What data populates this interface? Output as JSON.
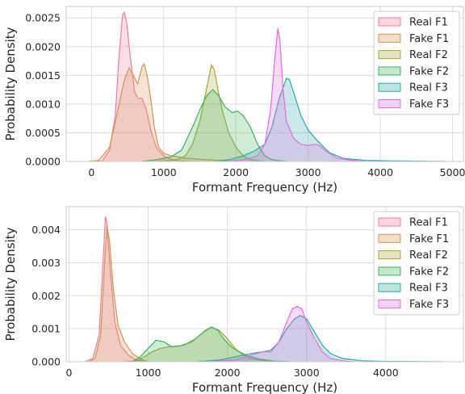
{
  "chart_data": [
    {
      "type": "area",
      "subtype": "kde",
      "xlabel": "Formant Frequency (Hz)",
      "ylabel": "Probability Density",
      "xlim": [
        -350,
        5150
      ],
      "ylim": [
        0,
        0.0027
      ],
      "xticks": [
        "0",
        "1000",
        "2000",
        "3000",
        "4000",
        "5000"
      ],
      "xtick_values": [
        0,
        1000,
        2000,
        3000,
        4000,
        5000
      ],
      "yticks": [
        "0.0000",
        "0.0005",
        "0.0010",
        "0.0015",
        "0.0020",
        "0.0025"
      ],
      "ytick_values": [
        0,
        0.0005,
        0.001,
        0.0015,
        0.002,
        0.0025
      ],
      "grid": true,
      "legend_position": "top-right",
      "series": [
        {
          "name": "Real F1",
          "color": "#f37b9a",
          "points": [
            [
              0,
              0
            ],
            [
              150,
              1e-05
            ],
            [
              250,
              0.0002
            ],
            [
              330,
              0.0008
            ],
            [
              380,
              0.0018
            ],
            [
              430,
              0.00255
            ],
            [
              455,
              0.0026
            ],
            [
              490,
              0.0024
            ],
            [
              540,
              0.0018
            ],
            [
              600,
              0.0012
            ],
            [
              650,
              0.0011
            ],
            [
              700,
              0.0011
            ],
            [
              760,
              0.0009
            ],
            [
              830,
              0.0005
            ],
            [
              900,
              0.00024
            ],
            [
              1000,
              0.0001
            ],
            [
              1100,
              4e-05
            ],
            [
              1200,
              1e-05
            ],
            [
              1400,
              0
            ]
          ]
        },
        {
          "name": "Fake F1",
          "color": "#d2954f",
          "points": [
            [
              -50,
              0
            ],
            [
              100,
              2e-05
            ],
            [
              250,
              0.00025
            ],
            [
              350,
              0.0008
            ],
            [
              450,
              0.0014
            ],
            [
              520,
              0.00163
            ],
            [
              580,
              0.0015
            ],
            [
              640,
              0.00135
            ],
            [
              700,
              0.00165
            ],
            [
              730,
              0.0017
            ],
            [
              770,
              0.0015
            ],
            [
              820,
              0.0011
            ],
            [
              870,
              0.0006
            ],
            [
              930,
              0.00025
            ],
            [
              1000,
              0.00014
            ],
            [
              1100,
              0.0001
            ],
            [
              1300,
              6e-05
            ],
            [
              1600,
              3e-05
            ],
            [
              2000,
              0
            ]
          ]
        },
        {
          "name": "Real F2",
          "color": "#a8a634",
          "points": [
            [
              900,
              0
            ],
            [
              1100,
              2e-05
            ],
            [
              1200,
              4e-05
            ],
            [
              1300,
              0.0001
            ],
            [
              1400,
              0.0003
            ],
            [
              1500,
              0.0007
            ],
            [
              1600,
              0.0013
            ],
            [
              1660,
              0.00168
            ],
            [
              1700,
              0.0016
            ],
            [
              1760,
              0.0012
            ],
            [
              1820,
              0.00085
            ],
            [
              1900,
              0.0005
            ],
            [
              2000,
              0.00025
            ],
            [
              2100,
              0.0001
            ],
            [
              2200,
              3e-05
            ],
            [
              2400,
              0
            ]
          ]
        },
        {
          "name": "Fake F2",
          "color": "#3bb45a",
          "points": [
            [
              700,
              0
            ],
            [
              900,
              3e-05
            ],
            [
              1100,
              8e-05
            ],
            [
              1250,
              0.0002
            ],
            [
              1400,
              0.0006
            ],
            [
              1500,
              0.0009
            ],
            [
              1600,
              0.00115
            ],
            [
              1680,
              0.00125
            ],
            [
              1760,
              0.00115
            ],
            [
              1850,
              0.00095
            ],
            [
              1950,
              0.00085
            ],
            [
              2020,
              0.00088
            ],
            [
              2100,
              0.0008
            ],
            [
              2200,
              0.0006
            ],
            [
              2300,
              0.0003
            ],
            [
              2400,
              0.0001
            ],
            [
              2500,
              3e-05
            ],
            [
              2700,
              0
            ]
          ]
        },
        {
          "name": "Real F3",
          "color": "#26aba3",
          "points": [
            [
              1700,
              0
            ],
            [
              1900,
              3e-05
            ],
            [
              2100,
              0.0001
            ],
            [
              2250,
              0.00018
            ],
            [
              2400,
              0.0003
            ],
            [
              2500,
              0.0006
            ],
            [
              2600,
              0.0011
            ],
            [
              2700,
              0.00145
            ],
            [
              2740,
              0.00143
            ],
            [
              2800,
              0.0012
            ],
            [
              2900,
              0.0008
            ],
            [
              3000,
              0.00055
            ],
            [
              3100,
              0.0004
            ],
            [
              3200,
              0.00027
            ],
            [
              3300,
              0.00015
            ],
            [
              3500,
              5e-05
            ],
            [
              3800,
              2e-05
            ],
            [
              4200,
              1e-05
            ],
            [
              4900,
              0
            ]
          ]
        },
        {
          "name": "Fake F3",
          "color": "#e56ae0",
          "points": [
            [
              1900,
              0
            ],
            [
              2100,
              3e-05
            ],
            [
              2300,
              0.0001
            ],
            [
              2400,
              0.0003
            ],
            [
              2480,
              0.0009
            ],
            [
              2540,
              0.0018
            ],
            [
              2580,
              0.00232
            ],
            [
              2610,
              0.0021
            ],
            [
              2650,
              0.0013
            ],
            [
              2700,
              0.0007
            ],
            [
              2800,
              0.0004
            ],
            [
              2900,
              0.0003
            ],
            [
              3000,
              0.00028
            ],
            [
              3100,
              0.0003
            ],
            [
              3150,
              0.00028
            ],
            [
              3250,
              0.00018
            ],
            [
              3400,
              6e-05
            ],
            [
              3600,
              2e-05
            ],
            [
              3800,
              0
            ]
          ]
        }
      ]
    },
    {
      "type": "area",
      "subtype": "kde",
      "xlabel": "Formant Frequency (Hz)",
      "ylabel": "Probability Density",
      "xlim": [
        -35,
        4980
      ],
      "ylim": [
        0,
        0.0047
      ],
      "xticks": [
        "0",
        "1000",
        "2000",
        "3000",
        "4000"
      ],
      "xtick_values": [
        0,
        1000,
        2000,
        3000,
        4000
      ],
      "yticks": [
        "0.000",
        "0.001",
        "0.002",
        "0.003",
        "0.004"
      ],
      "ytick_values": [
        0,
        0.001,
        0.002,
        0.003,
        0.004
      ],
      "grid": true,
      "legend_position": "top-right",
      "series": [
        {
          "name": "Real F1",
          "color": "#f37b9a",
          "points": [
            [
              200,
              0
            ],
            [
              300,
              0.0001
            ],
            [
              380,
              0.0008
            ],
            [
              430,
              0.003
            ],
            [
              460,
              0.0044
            ],
            [
              480,
              0.0042
            ],
            [
              520,
              0.0028
            ],
            [
              580,
              0.0012
            ],
            [
              650,
              0.0005
            ],
            [
              750,
              0.0002
            ],
            [
              850,
              5e-05
            ],
            [
              1000,
              0
            ]
          ]
        },
        {
          "name": "Fake F1",
          "color": "#d2954f",
          "points": [
            [
              250,
              0
            ],
            [
              330,
              0.0001
            ],
            [
              400,
              0.0008
            ],
            [
              450,
              0.003
            ],
            [
              480,
              0.0041
            ],
            [
              510,
              0.0037
            ],
            [
              560,
              0.0022
            ],
            [
              620,
              0.0011
            ],
            [
              700,
              0.0006
            ],
            [
              800,
              0.00025
            ],
            [
              900,
              8e-05
            ],
            [
              1000,
              0
            ]
          ]
        },
        {
          "name": "Real F2",
          "color": "#a8a634",
          "points": [
            [
              700,
              0
            ],
            [
              850,
              3e-05
            ],
            [
              950,
              0.00015
            ],
            [
              1050,
              0.0003
            ],
            [
              1150,
              0.0004
            ],
            [
              1250,
              0.00045
            ],
            [
              1400,
              0.00048
            ],
            [
              1550,
              0.0006
            ],
            [
              1700,
              0.0009
            ],
            [
              1800,
              0.00105
            ],
            [
              1900,
              0.00095
            ],
            [
              2000,
              0.0007
            ],
            [
              2100,
              0.0004
            ],
            [
              2200,
              0.0002
            ],
            [
              2300,
              0.0001
            ],
            [
              2500,
              2e-05
            ],
            [
              2700,
              0
            ]
          ]
        },
        {
          "name": "Fake F2",
          "color": "#3bb45a",
          "points": [
            [
              800,
              0
            ],
            [
              900,
              0.00015
            ],
            [
              1000,
              0.0004
            ],
            [
              1100,
              0.00065
            ],
            [
              1200,
              0.0006
            ],
            [
              1300,
              0.00045
            ],
            [
              1450,
              0.0005
            ],
            [
              1600,
              0.0007
            ],
            [
              1720,
              0.00095
            ],
            [
              1800,
              0.00105
            ],
            [
              1880,
              0.00095
            ],
            [
              1950,
              0.0007
            ],
            [
              2050,
              0.00045
            ],
            [
              2150,
              0.0003
            ],
            [
              2250,
              0.00018
            ],
            [
              2400,
              8e-05
            ],
            [
              2600,
              2e-05
            ],
            [
              2800,
              0
            ]
          ]
        },
        {
          "name": "Real F3",
          "color": "#26aba3",
          "points": [
            [
              1600,
              0
            ],
            [
              1900,
              5e-05
            ],
            [
              2100,
              0.00015
            ],
            [
              2300,
              0.00025
            ],
            [
              2450,
              0.0003
            ],
            [
              2550,
              0.00035
            ],
            [
              2650,
              0.0006
            ],
            [
              2750,
              0.001
            ],
            [
              2850,
              0.0013
            ],
            [
              2920,
              0.0014
            ],
            [
              3000,
              0.0013
            ],
            [
              3100,
              0.0009
            ],
            [
              3200,
              0.0005
            ],
            [
              3300,
              0.00025
            ],
            [
              3450,
              0.0001
            ],
            [
              3700,
              3e-05
            ],
            [
              4000,
              1e-05
            ],
            [
              4700,
              0
            ]
          ]
        },
        {
          "name": "Fake F3",
          "color": "#e56ae0",
          "points": [
            [
              1800,
              0
            ],
            [
              2100,
              5e-05
            ],
            [
              2300,
              0.0002
            ],
            [
              2450,
              0.0003
            ],
            [
              2550,
              0.0003
            ],
            [
              2650,
              0.0006
            ],
            [
              2750,
              0.0012
            ],
            [
              2820,
              0.0016
            ],
            [
              2880,
              0.00168
            ],
            [
              2940,
              0.0016
            ],
            [
              3000,
              0.0012
            ],
            [
              3100,
              0.0007
            ],
            [
              3200,
              0.0003
            ],
            [
              3300,
              0.0001
            ],
            [
              3450,
              3e-05
            ],
            [
              3600,
              0
            ]
          ]
        }
      ]
    }
  ]
}
